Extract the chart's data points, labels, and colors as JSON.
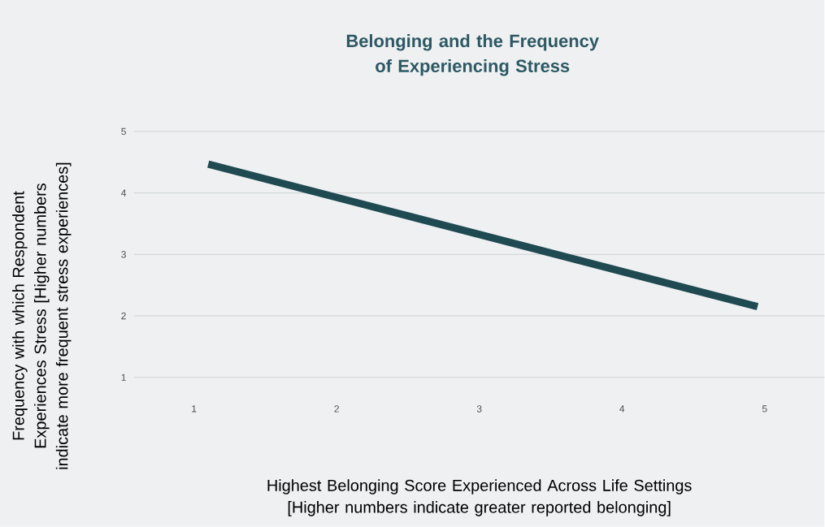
{
  "chart_data": {
    "type": "line",
    "title": "Belonging and the Frequency of Experiencing Stress",
    "xlabel": "Highest Belonging Score Experienced Across Life Settings [Higher numbers indicate greater reported belonging]",
    "ylabel": "Frequency with which Respondent Experiences Stress [Higher numbers indicate more frequent stress experiences]",
    "x": [
      1.1,
      4.95
    ],
    "series": [
      {
        "color": "#1f4a52",
        "values": [
          4.47,
          2.15
        ]
      }
    ],
    "xlim": [
      0.58,
      5.42
    ],
    "ylim": [
      1,
      5
    ],
    "xticks": [
      1,
      2,
      3,
      4,
      5
    ],
    "yticks": [
      1,
      2,
      3,
      4,
      5
    ],
    "grid": "y",
    "marker": "none",
    "line_style": "solid"
  }
}
